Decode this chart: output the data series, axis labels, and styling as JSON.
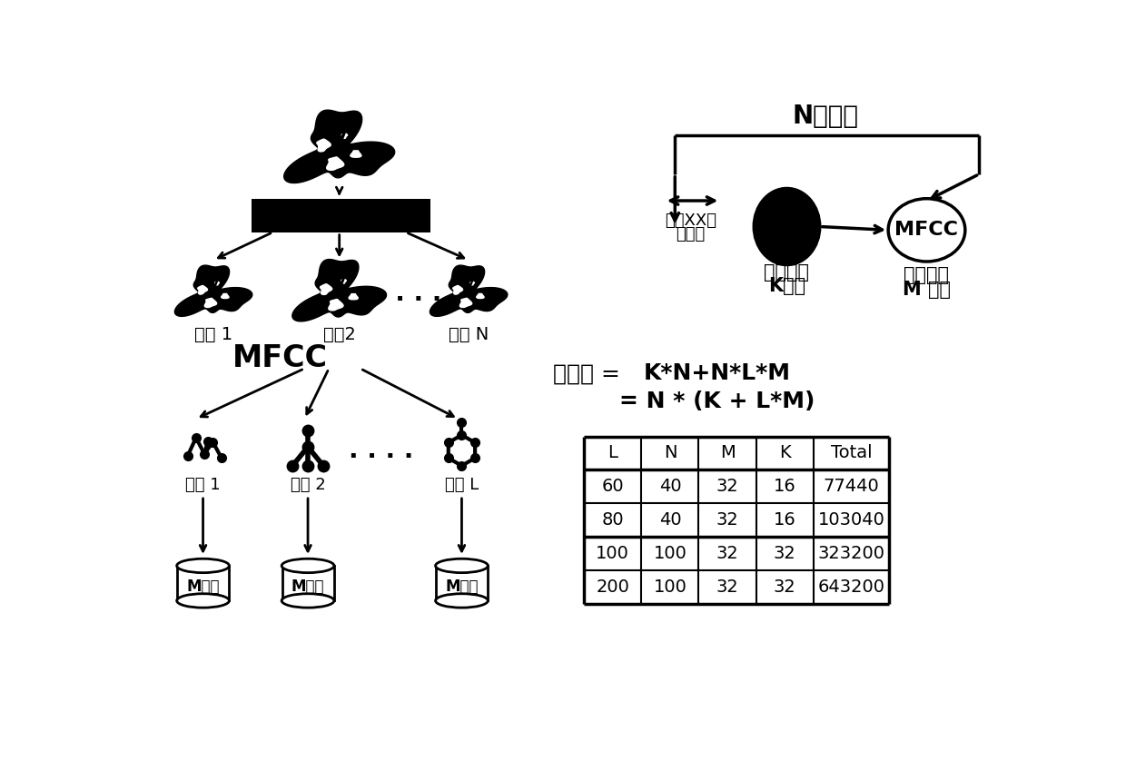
{
  "bg_color": "#ffffff",
  "table_headers": [
    "L",
    "N",
    "M",
    "K",
    "Total"
  ],
  "table_rows": [
    [
      "60",
      "40",
      "32",
      "16",
      "77440"
    ],
    [
      "80",
      "40",
      "32",
      "16",
      "103040"
    ],
    [
      "100",
      "100",
      "32",
      "32",
      "323200"
    ],
    [
      "200",
      "100",
      "32",
      "32",
      "643200"
    ]
  ],
  "label_N_copies": "N个副本",
  "label_XX_steps_line1": "进行XX步",
  "label_XX_steps_line2": "动力学",
  "label_each_copy_line1": "每个副本",
  "label_each_copy_line2": "K个核",
  "label_each_residue_line1": "每个残基",
  "label_each_residue_line2": "M 个核",
  "label_copy1": "副本 1",
  "label_copy2": "副本2",
  "label_copyN": "副本 N",
  "label_residue1": "残基 1",
  "label_residue2": "残基 2",
  "label_residueL": "残基 L",
  "label_Mcore": "M个核",
  "label_MFCC": "MFCC",
  "formula_prefix": "总核数 = ",
  "formula_bold1": "K*N+N*L*M",
  "formula_bold2": "= N * (K + L*M)"
}
